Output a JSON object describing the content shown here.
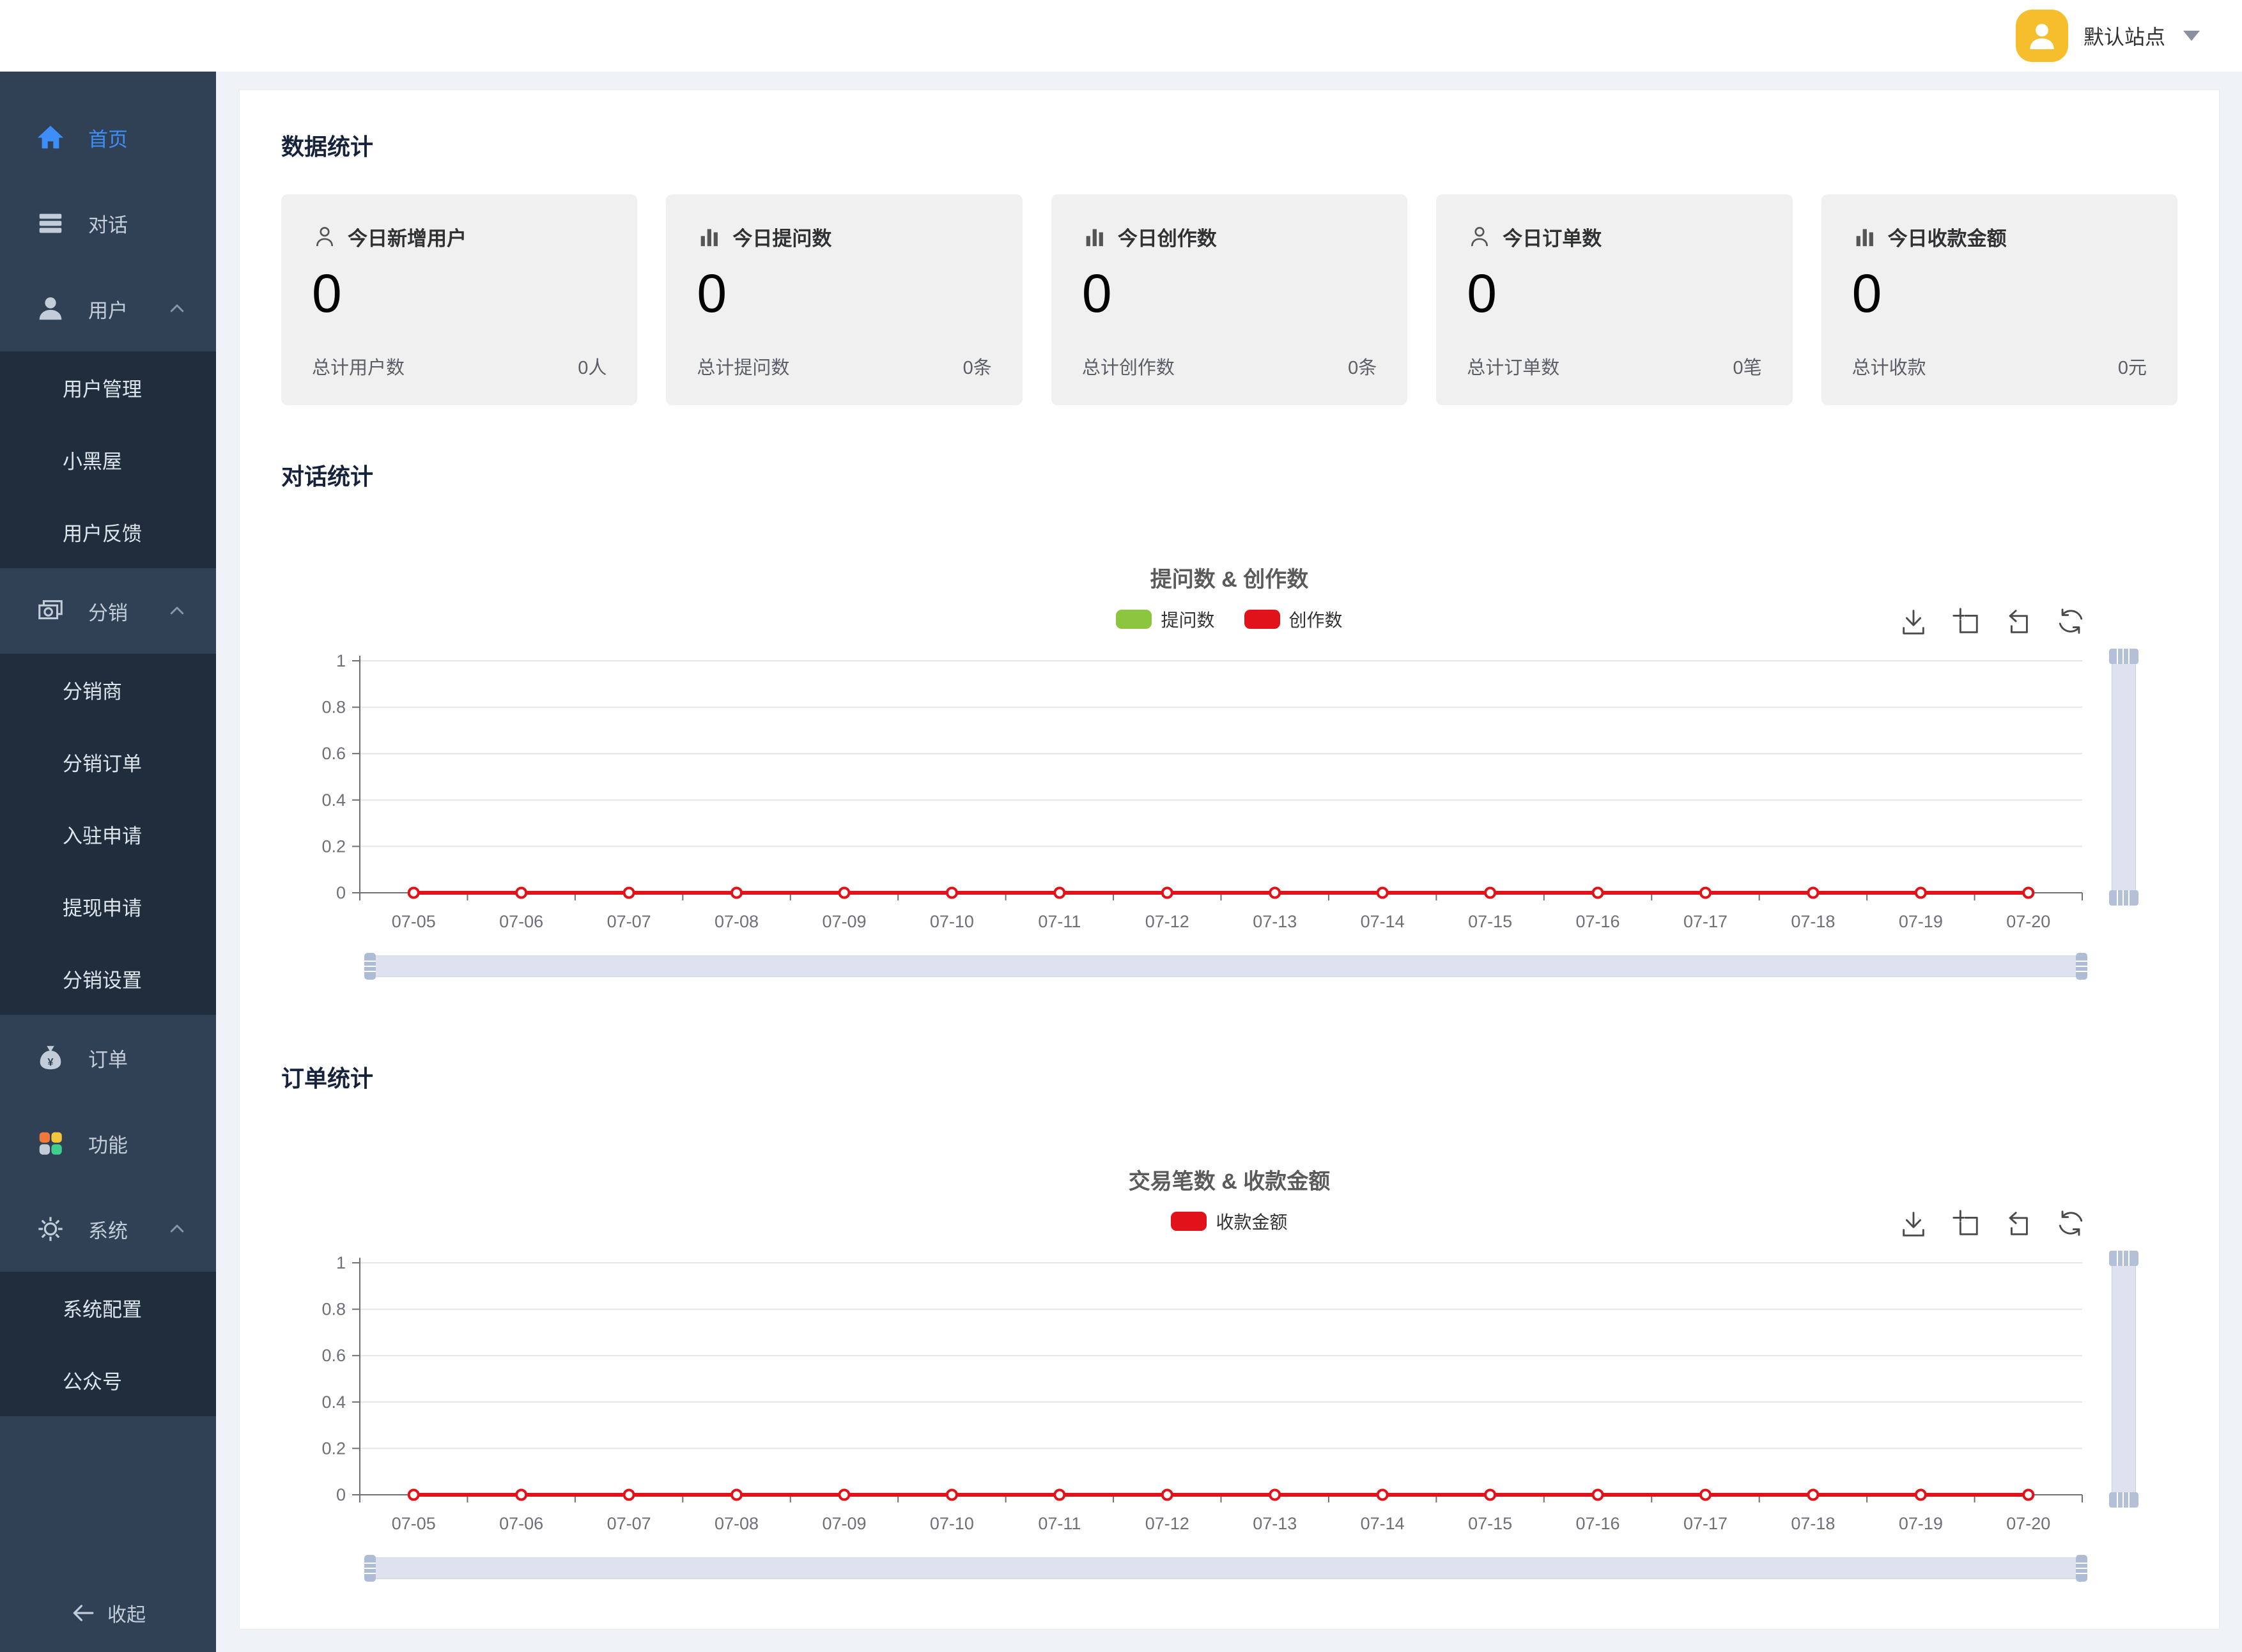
{
  "topbar": {
    "site_label": "默认站点"
  },
  "sidebar": {
    "collapse_label": "收起",
    "items": [
      {
        "key": "home",
        "icon": "home",
        "label": "首页",
        "active": true
      },
      {
        "key": "chat",
        "icon": "list",
        "label": "对话"
      },
      {
        "key": "users",
        "icon": "user",
        "label": "用户",
        "expanded": true,
        "children": [
          {
            "key": "user-management",
            "label": "用户管理"
          },
          {
            "key": "blacklist",
            "label": "小黑屋"
          },
          {
            "key": "user-feedback",
            "label": "用户反馈"
          }
        ]
      },
      {
        "key": "distribution",
        "icon": "cards",
        "label": "分销",
        "expanded": true,
        "children": [
          {
            "key": "distributors",
            "label": "分销商"
          },
          {
            "key": "distribution-orders",
            "label": "分销订单"
          },
          {
            "key": "entry-applications",
            "label": "入驻申请"
          },
          {
            "key": "withdrawal-applications",
            "label": "提现申请"
          },
          {
            "key": "distribution-settings",
            "label": "分销设置"
          }
        ]
      },
      {
        "key": "orders",
        "icon": "moneybag",
        "label": "订单"
      },
      {
        "key": "features",
        "icon": "apps",
        "label": "功能"
      },
      {
        "key": "system",
        "icon": "gear",
        "label": "系统",
        "expanded": true,
        "children": [
          {
            "key": "system-config",
            "label": "系统配置"
          },
          {
            "key": "official-account",
            "label": "公众号"
          }
        ]
      }
    ]
  },
  "sections": {
    "stats": "数据统计",
    "conversation": "对话统计",
    "orders": "订单统计"
  },
  "stat_cards": [
    {
      "key": "new-users-today",
      "icon": "user-outline",
      "title": "今日新增用户",
      "value": "0",
      "total_label": "总计用户数",
      "total_value": "0人"
    },
    {
      "key": "questions-today",
      "icon": "bar-chart",
      "title": "今日提问数",
      "value": "0",
      "total_label": "总计提问数",
      "total_value": "0条"
    },
    {
      "key": "creations-today",
      "icon": "bar-chart",
      "title": "今日创作数",
      "value": "0",
      "total_label": "总计创作数",
      "total_value": "0条"
    },
    {
      "key": "orders-today",
      "icon": "user-outline",
      "title": "今日订单数",
      "value": "0",
      "total_label": "总计订单数",
      "total_value": "0笔"
    },
    {
      "key": "revenue-today",
      "icon": "bar-chart",
      "title": "今日收款金额",
      "value": "0",
      "total_label": "总计收款",
      "total_value": "0元"
    }
  ],
  "toolbox_icons": [
    "download",
    "zoom-box",
    "undo-box",
    "refresh"
  ],
  "chart_data": [
    {
      "type": "line",
      "title": "提问数 & 创作数",
      "categories": [
        "07-05",
        "07-06",
        "07-07",
        "07-08",
        "07-09",
        "07-10",
        "07-11",
        "07-12",
        "07-13",
        "07-14",
        "07-15",
        "07-16",
        "07-17",
        "07-18",
        "07-19",
        "07-20"
      ],
      "series": [
        {
          "name": "提问数",
          "color": "#8CC540",
          "values": [
            0,
            0,
            0,
            0,
            0,
            0,
            0,
            0,
            0,
            0,
            0,
            0,
            0,
            0,
            0,
            0
          ]
        },
        {
          "name": "创作数",
          "color": "#E2121B",
          "values": [
            0,
            0,
            0,
            0,
            0,
            0,
            0,
            0,
            0,
            0,
            0,
            0,
            0,
            0,
            0,
            0
          ]
        }
      ],
      "ylim": [
        0,
        1
      ],
      "yticks": [
        0,
        0.2,
        0.4,
        0.6,
        0.8,
        1
      ],
      "grid": true,
      "legend_position": "top",
      "has_datazoom_sliders": true
    },
    {
      "type": "line",
      "title": "交易笔数 & 收款金额",
      "categories": [
        "07-05",
        "07-06",
        "07-07",
        "07-08",
        "07-09",
        "07-10",
        "07-11",
        "07-12",
        "07-13",
        "07-14",
        "07-15",
        "07-16",
        "07-17",
        "07-18",
        "07-19",
        "07-20"
      ],
      "series": [
        {
          "name": "收款金额",
          "color": "#E2121B",
          "values": [
            0,
            0,
            0,
            0,
            0,
            0,
            0,
            0,
            0,
            0,
            0,
            0,
            0,
            0,
            0,
            0
          ]
        }
      ],
      "ylim": [
        0,
        1
      ],
      "yticks": [
        0,
        0.2,
        0.4,
        0.6,
        0.8,
        1
      ],
      "grid": true,
      "legend_position": "top",
      "has_datazoom_sliders": true
    }
  ],
  "colors": {
    "accent_blue": "#3e8ef7",
    "avatar_bg": "#F6BD2C",
    "sidebar_bg": "#304156",
    "submenu_bg": "#1f2d3d",
    "series_green": "#8CC540",
    "series_red": "#E2121B"
  }
}
